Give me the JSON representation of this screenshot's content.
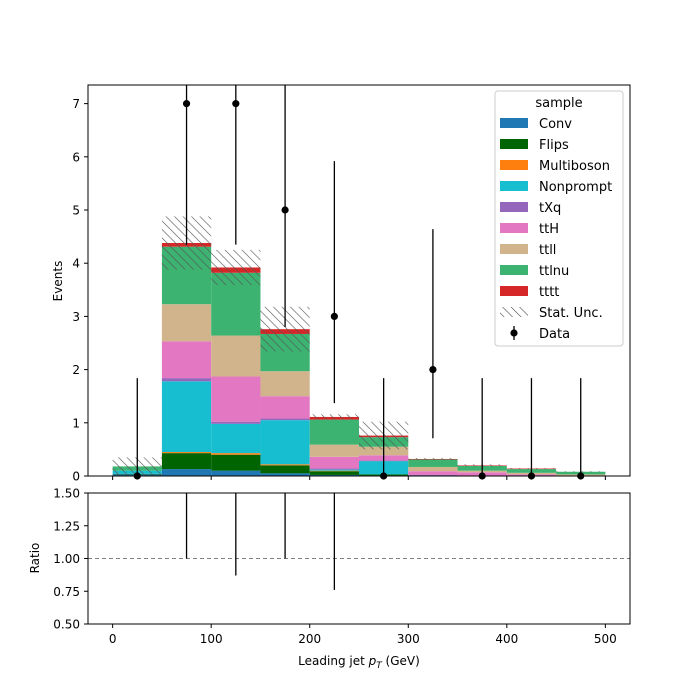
{
  "chart_data": {
    "type": "bar",
    "stacked": true,
    "bin_edges": [
      0,
      50,
      100,
      150,
      200,
      250,
      300,
      350,
      400,
      450,
      500
    ],
    "xlabel_main": "Leading jet ",
    "xlabel_var": "p",
    "xlabel_sub": "T",
    "xlabel_unit": " (GeV)",
    "ylabel": "Events",
    "ratio_ylabel": "Ratio",
    "xlim": [
      -25,
      525
    ],
    "ylim": [
      0,
      7.35
    ],
    "ratio_ylim": [
      0.5,
      1.5
    ],
    "xticks": [
      "0",
      "100",
      "200",
      "300",
      "400",
      "500"
    ],
    "yticks": [
      "0",
      "1",
      "2",
      "3",
      "4",
      "5",
      "6",
      "7"
    ],
    "ratio_yticks": [
      "0.50",
      "0.75",
      "1.00",
      "1.25",
      "1.50"
    ],
    "legend_title": "sample",
    "legend_position": "top-right",
    "series": [
      {
        "name": "Conv",
        "color": "#1f77b4",
        "values": [
          0.03,
          0.13,
          0.1,
          0.05,
          0.02,
          0.01,
          0.0,
          0.0,
          0.0,
          0.0
        ]
      },
      {
        "name": "Flips",
        "color": "#006400",
        "values": [
          0.01,
          0.3,
          0.3,
          0.15,
          0.07,
          0.02,
          0.01,
          0.0,
          0.0,
          0.0
        ]
      },
      {
        "name": "Multiboson",
        "color": "#ff7f0e",
        "values": [
          0.0,
          0.02,
          0.03,
          0.02,
          0.01,
          0.0,
          0.0,
          0.0,
          0.0,
          0.0
        ]
      },
      {
        "name": "Nonprompt",
        "color": "#17becf",
        "values": [
          0.06,
          1.33,
          0.55,
          0.83,
          0.02,
          0.25,
          0.0,
          0.0,
          0.0,
          0.0
        ]
      },
      {
        "name": "tXq",
        "color": "#9467bd",
        "values": [
          0.0,
          0.06,
          0.04,
          0.03,
          0.02,
          0.01,
          0.01,
          0.0,
          0.0,
          0.0
        ]
      },
      {
        "name": "ttH",
        "color": "#e377c2",
        "values": [
          0.0,
          0.69,
          0.85,
          0.42,
          0.22,
          0.1,
          0.07,
          0.07,
          0.03,
          0.01
        ]
      },
      {
        "name": "ttll",
        "color": "#d2b48c",
        "values": [
          0.0,
          0.7,
          0.77,
          0.47,
          0.23,
          0.16,
          0.08,
          0.03,
          0.03,
          0.02
        ]
      },
      {
        "name": "ttlnu",
        "color": "#3cb371",
        "values": [
          0.08,
          1.08,
          1.18,
          0.7,
          0.47,
          0.18,
          0.14,
          0.09,
          0.07,
          0.05
        ]
      },
      {
        "name": "tttt",
        "color": "#d62728",
        "values": [
          0.0,
          0.07,
          0.1,
          0.09,
          0.05,
          0.03,
          0.01,
          0.01,
          0.01,
          0.0
        ]
      }
    ],
    "stat_unc_label": "Stat. Unc.",
    "stat_unc": [
      0.17,
      0.5,
      0.33,
      0.42,
      0.05,
      0.26,
      0.02,
      0.02,
      0.01,
      0.01
    ],
    "data_label": "Data",
    "data": {
      "x": [
        25,
        75,
        125,
        175,
        225,
        275,
        325,
        375,
        425,
        475
      ],
      "y": [
        0,
        7,
        7,
        5,
        3,
        0,
        2,
        0,
        0,
        0
      ],
      "err_low": [
        0,
        2.65,
        2.65,
        2.2,
        1.63,
        0,
        1.29,
        0,
        0,
        0
      ],
      "err_high": [
        1.84,
        3.77,
        3.77,
        3.38,
        2.92,
        1.84,
        2.64,
        1.84,
        1.84,
        1.84
      ]
    },
    "ratio": {
      "reference": 1.0,
      "err_low": [
        null,
        0,
        0.13,
        0,
        0.24,
        null,
        null,
        null,
        null,
        null
      ],
      "err_high": [
        null,
        0.6,
        0.6,
        0.6,
        0.6,
        null,
        null,
        null,
        null,
        null
      ]
    },
    "colors": {
      "data": "#000000",
      "unc_hatch": "#555555",
      "ratio_line": "#808080"
    }
  }
}
